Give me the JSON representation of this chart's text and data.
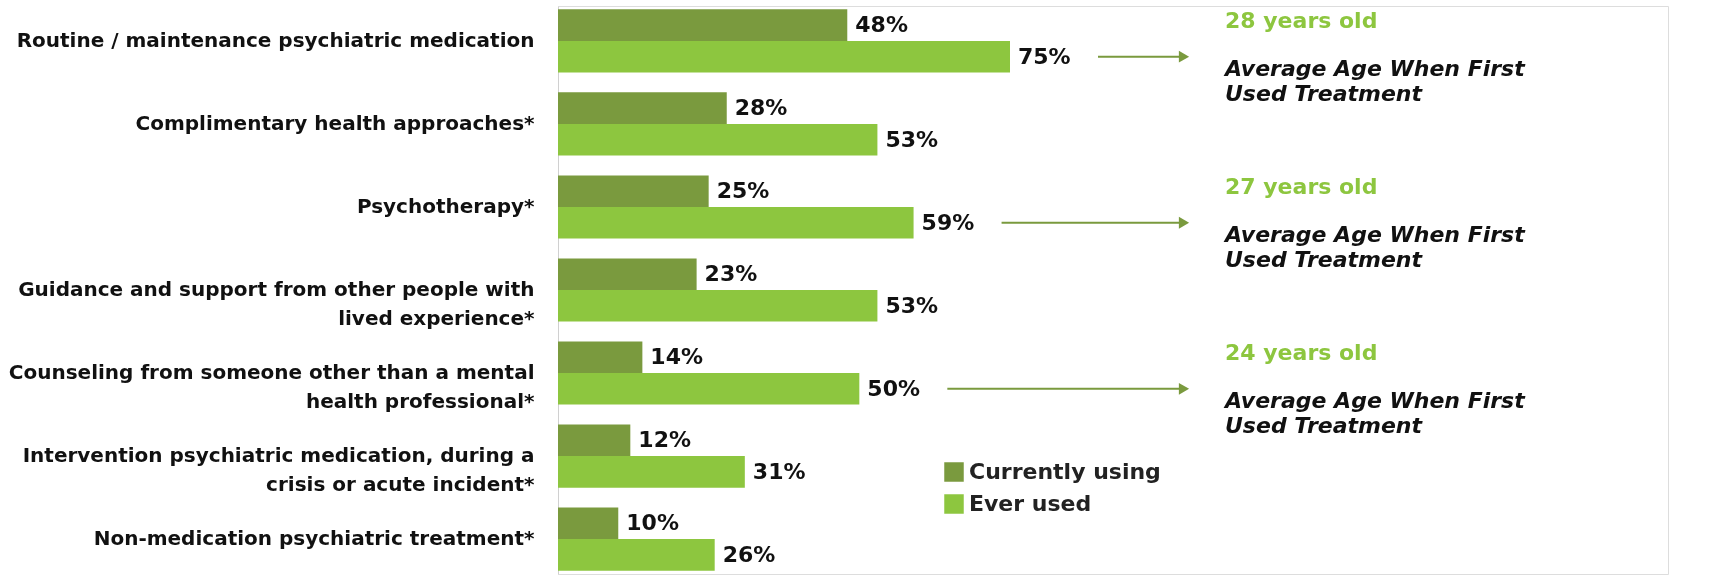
{
  "chart_data": {
    "type": "bar",
    "orientation": "horizontal",
    "categories": [
      "Routine / maintenance psychiatric medication",
      "Complimentary health approaches*",
      "Psychotherapy*",
      "Guidance and support from other people with lived experience*",
      "Counseling from someone other than a mental health professional*",
      "Intervention psychiatric medication, during a crisis or acute incident*",
      "Non-medication psychiatric treatment*"
    ],
    "series": [
      {
        "name": "Currently using",
        "color": "#7a9a3e",
        "values": [
          48,
          28,
          25,
          23,
          14,
          12,
          10
        ],
        "value_labels": [
          "48%",
          "28%",
          "25%",
          "23%",
          "14%",
          "12%",
          "10%"
        ]
      },
      {
        "name": "Ever used",
        "color": "#8dc63f",
        "values": [
          75,
          53,
          59,
          53,
          50,
          31,
          26
        ],
        "value_labels": [
          "75%",
          "53%",
          "59%",
          "53%",
          "50%",
          "31%",
          "26%"
        ]
      }
    ],
    "annotations": [
      "28 years old",
      "Average Age When First Used Treatment",
      "27 years old",
      "Average Age When First Used Treatment",
      "24 years old",
      "Average Age When First Used Treatment"
    ],
    "legend": "bottom right",
    "grid": false,
    "tick_labels": "y"
  }
}
